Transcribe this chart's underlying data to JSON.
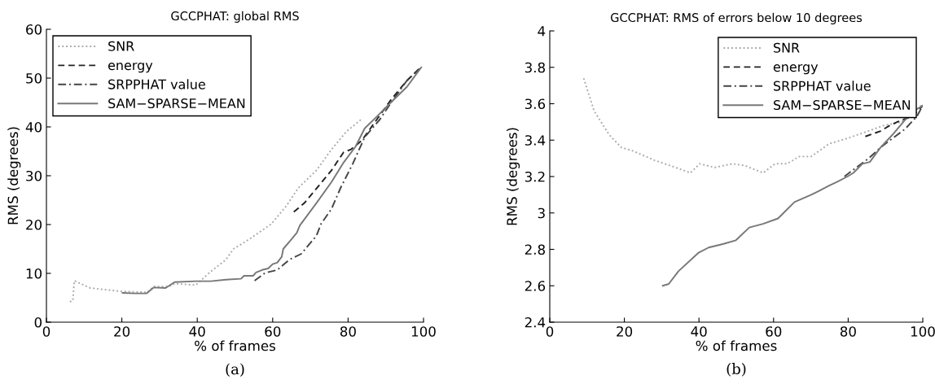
{
  "chart_data": [
    {
      "type": "line",
      "title": "GCCPHAT: global RMS",
      "xlabel": "% of frames",
      "ylabel": "RMS (degrees)",
      "annotations": [
        "(a)"
      ],
      "xlim": [
        0,
        100
      ],
      "xticks": [
        0,
        20,
        40,
        60,
        80,
        100
      ],
      "ylim": [
        0,
        60
      ],
      "yticks": [
        0,
        10,
        20,
        30,
        40,
        50,
        60
      ],
      "grid": false,
      "legend": "top left",
      "marker": "none",
      "series": [
        {
          "name": "SNR",
          "color": "#aaaaaa",
          "line_style": "dotted",
          "x": [
            6.2,
            7,
            7.4,
            11.6,
            20,
            26.8,
            28.4,
            32.4,
            34,
            39.6,
            43.6,
            47.6,
            49.6,
            54,
            59.6,
            63.6,
            66.8,
            71.6,
            75.6,
            79.6,
            83.6
          ],
          "values": [
            4.2,
            4.4,
            8.5,
            7.0,
            6.3,
            6.1,
            7.3,
            7.3,
            7.9,
            7.6,
            10.4,
            12.8,
            15,
            17.1,
            20.1,
            23.8,
            27.5,
            31.1,
            35.4,
            39.1,
            41.6
          ]
        },
        {
          "name": "energy",
          "color": "#222222",
          "line_style": "dashed",
          "x": [
            65.6,
            68.4,
            72.4,
            75.6,
            78.8,
            80.8,
            83.6,
            87.6,
            91.6,
            95.6,
            99.2
          ],
          "values": [
            22.6,
            24.4,
            28.1,
            31.1,
            34.8,
            35.4,
            37.2,
            41.5,
            45.8,
            49.5,
            52.2
          ]
        },
        {
          "name": "SRPPHAT value",
          "color": "#444444",
          "line_style": "dashdot",
          "x": [
            55.2,
            58,
            61.2,
            64.4,
            67.6,
            71.6,
            72.8,
            75.6,
            78,
            81.2,
            84.4,
            88.4,
            91.6,
            95.6,
            99.4
          ],
          "values": [
            8.5,
            10.1,
            10.7,
            12.8,
            14,
            17.7,
            20.1,
            23.2,
            27.5,
            32.4,
            37.9,
            41.5,
            45.2,
            49.5,
            52.2
          ]
        },
        {
          "name": "SAM−SPARSE−MEAN",
          "color": "#777777",
          "line_style": "solid",
          "x": [
            20.2,
            23.6,
            26.6,
            28.4,
            31.6,
            34,
            39.6,
            43.6,
            47.6,
            51.6,
            52.4,
            54.8,
            55.6,
            57.2,
            58.8,
            60,
            61.2,
            62.4,
            62.8,
            64.8,
            66.4,
            67.2,
            71.6,
            75.6,
            78.8,
            82,
            84.4,
            87.6,
            91.6,
            95.6,
            99.4
          ],
          "values": [
            6.0,
            5.9,
            5.9,
            7.1,
            7.0,
            8.2,
            8.4,
            8.4,
            8.7,
            8.9,
            9.5,
            9.5,
            10.2,
            10.7,
            11.0,
            11.9,
            12.2,
            13.4,
            15,
            16.8,
            18.3,
            19.8,
            24.4,
            28.7,
            32.7,
            36,
            39.7,
            42.1,
            45.2,
            48.2,
            52.2
          ]
        }
      ]
    },
    {
      "type": "line",
      "title": "GCCPHAT: RMS of errors below 10 degrees",
      "xlabel": "% of frames",
      "ylabel": "RMS (degrees)",
      "annotations": [
        "(b)"
      ],
      "xlim": [
        0,
        100
      ],
      "xticks": [
        0,
        20,
        40,
        60,
        80,
        100
      ],
      "ylim": [
        2.4,
        4
      ],
      "yticks": [
        2.4,
        2.6,
        2.8,
        3,
        3.2,
        3.4,
        3.6,
        3.8,
        4
      ],
      "grid": false,
      "legend": "top right",
      "marker": "none",
      "series": [
        {
          "name": "SNR",
          "color": "#aaaaaa",
          "line_style": "dotted",
          "x": [
            9.1,
            11.9,
            15.9,
            19.2,
            22.4,
            28,
            33.7,
            37.7,
            40.2,
            44.2,
            49,
            52.3,
            57.2,
            60.4,
            63.6,
            66.9,
            70.1,
            74.9,
            79.8,
            85.4,
            89.5,
            94.3,
            99.6
          ],
          "values": [
            3.74,
            3.56,
            3.43,
            3.36,
            3.34,
            3.29,
            3.25,
            3.22,
            3.27,
            3.25,
            3.27,
            3.26,
            3.22,
            3.27,
            3.27,
            3.31,
            3.31,
            3.38,
            3.41,
            3.45,
            3.48,
            3.5,
            3.59
          ]
        },
        {
          "name": "energy",
          "color": "#222222",
          "line_style": "dashed",
          "x": [
            84.6,
            88.7,
            91.1,
            94.3,
            97.2,
            100
          ],
          "values": [
            3.42,
            3.45,
            3.48,
            3.51,
            3.53,
            3.59
          ]
        },
        {
          "name": "SRPPHAT value",
          "color": "#444444",
          "line_style": "dashdot",
          "x": [
            79,
            82.2,
            85.5,
            88.7,
            91.9,
            95.2,
            98.4,
            100
          ],
          "values": [
            3.2,
            3.25,
            3.3,
            3.36,
            3.41,
            3.46,
            3.53,
            3.59
          ]
        },
        {
          "name": "SAM−SPARSE−MEAN",
          "color": "#777777",
          "line_style": "solid",
          "x": [
            30.3,
            31.9,
            34.5,
            39.8,
            42.6,
            46.6,
            49.9,
            53.5,
            57.2,
            61.2,
            65.6,
            70.1,
            72.1,
            74.9,
            77,
            79.8,
            81.4,
            83.8,
            85.8,
            88.7,
            91.9,
            95.2,
            98.4,
            100
          ],
          "values": [
            2.6,
            2.61,
            2.68,
            2.78,
            2.81,
            2.83,
            2.85,
            2.92,
            2.94,
            2.97,
            3.06,
            3.1,
            3.12,
            3.15,
            3.17,
            3.2,
            3.22,
            3.27,
            3.28,
            3.36,
            3.43,
            3.51,
            3.57,
            3.59
          ]
        }
      ]
    }
  ]
}
